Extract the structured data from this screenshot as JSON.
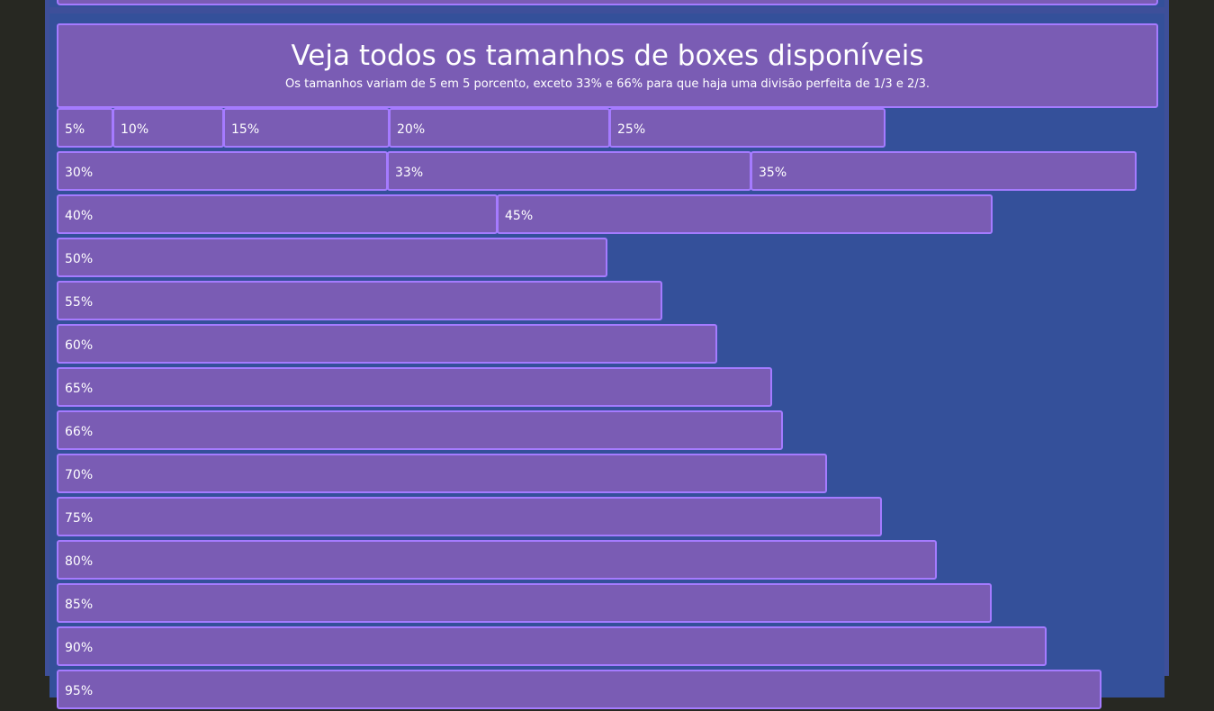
{
  "header": {
    "title": "Veja todos os tamanhos de boxes disponíveis",
    "subtitle": "Os tamanhos variam de 5 em 5 porcento, exceto 33% e 66% para que haja uma divisão perfeita de 1/3 e 2/3."
  },
  "rows": [
    [
      "5%",
      "10%",
      "15%",
      "20%",
      "25%"
    ],
    [
      "30%",
      "33%",
      "35%"
    ],
    [
      "40%",
      "45%"
    ],
    [
      "50%"
    ],
    [
      "55%"
    ],
    [
      "60%"
    ],
    [
      "65%"
    ],
    [
      "66%"
    ],
    [
      "70%"
    ],
    [
      "75%"
    ],
    [
      "80%"
    ],
    [
      "85%"
    ],
    [
      "90%"
    ],
    [
      "95%"
    ]
  ],
  "colors": {
    "outer_background": "#272822",
    "page_background": "#3e4f9a",
    "container_background": "#34509a",
    "box_fill": "#7a5cb4",
    "box_border": "#a57bff",
    "text": "#ffffff"
  }
}
